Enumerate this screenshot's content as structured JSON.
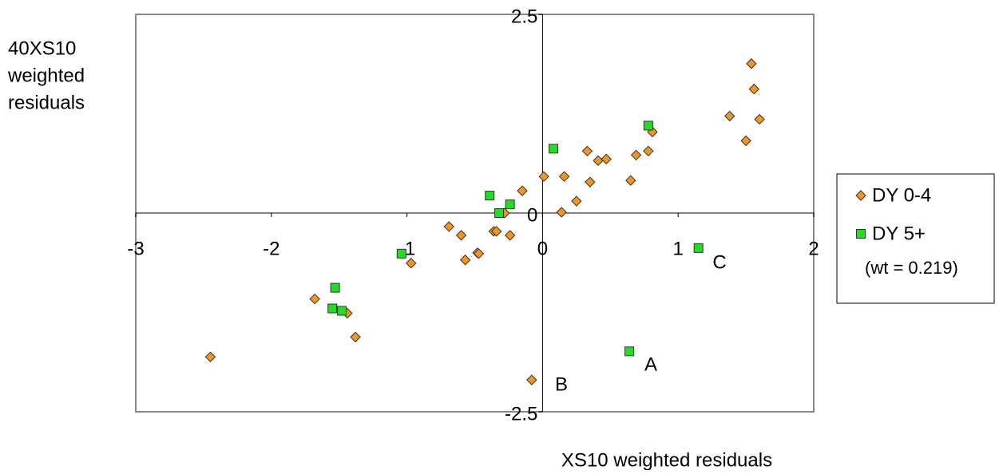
{
  "chart_data": {
    "type": "scatter",
    "ylabel_lines": [
      "40XS10",
      "weighted",
      "residuals"
    ],
    "xlabel": "XS10 weighted residuals",
    "xlim": [
      -3,
      2
    ],
    "ylim": [
      -2.5,
      2.5
    ],
    "xticks": [
      -3,
      -2,
      -1,
      0,
      1,
      2
    ],
    "yticks": [
      -2.5,
      0,
      2.5
    ],
    "series": [
      {
        "name": "DY 0-4",
        "color": "#f7941d",
        "marker": "diamond",
        "x": [
          1.54,
          1.56,
          1.38,
          1.6,
          1.5,
          0.81,
          0.78,
          0.69,
          0.33,
          0.41,
          0.47,
          0.65,
          0.35,
          0.16,
          0.01,
          -0.15,
          0.25,
          0.14,
          -0.28,
          -0.36,
          -0.34,
          -0.24,
          -0.69,
          -0.6,
          -0.48,
          -0.47,
          -0.57,
          -0.97,
          -1.68,
          -1.44,
          -1.38,
          -2.45,
          -0.08
        ],
        "values": [
          1.88,
          1.56,
          1.22,
          1.18,
          0.91,
          1.02,
          0.78,
          0.73,
          0.78,
          0.66,
          0.68,
          0.41,
          0.39,
          0.46,
          0.46,
          0.28,
          0.15,
          0.01,
          0.0,
          -0.23,
          -0.23,
          -0.28,
          -0.17,
          -0.28,
          -0.5,
          -0.51,
          -0.59,
          -0.63,
          -1.08,
          -1.26,
          -1.56,
          -1.81,
          -2.1
        ]
      },
      {
        "name": "DY 5+",
        "color": "#22dd22",
        "marker": "square",
        "x": [
          0.78,
          0.08,
          -0.39,
          -0.24,
          -0.32,
          -1.04,
          -1.53,
          -1.55,
          -1.48,
          0.64,
          1.15
        ],
        "values": [
          1.1,
          0.81,
          0.22,
          0.11,
          0.0,
          -0.51,
          -0.94,
          -1.2,
          -1.23,
          -1.74,
          -0.44
        ]
      }
    ],
    "legend_note": "(wt = 0.219)",
    "annotations": [
      "A",
      "B",
      "C"
    ]
  }
}
